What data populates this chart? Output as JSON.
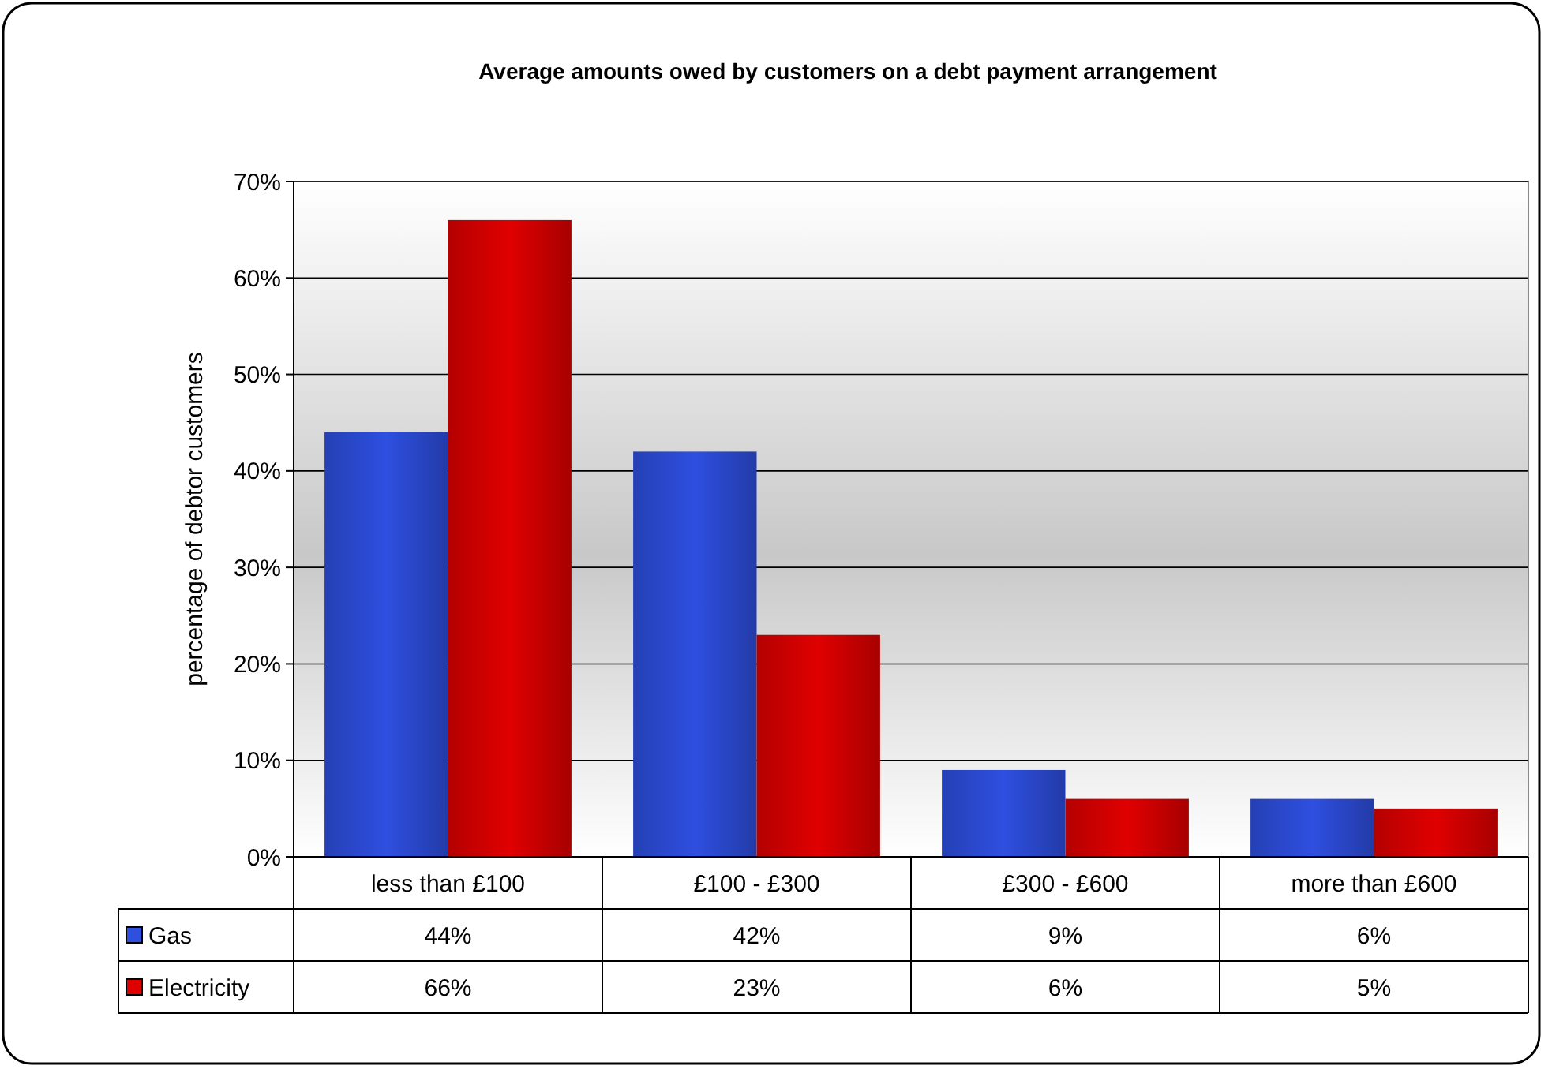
{
  "chart_data": {
    "type": "bar",
    "title": "Average amounts owed by customers on a debt payment arrangement",
    "ylabel": "percentage of debtor customers",
    "categories": [
      "less than £100",
      "£100 - £300",
      "£300 - £600",
      "more than £600"
    ],
    "series": [
      {
        "name": "Gas",
        "color": "#2e4fe0",
        "values": [
          44,
          42,
          9,
          6
        ],
        "value_labels": [
          "44%",
          "42%",
          "9%",
          "6%"
        ]
      },
      {
        "name": "Electricity",
        "color": "#e00000",
        "values": [
          66,
          23,
          6,
          5
        ],
        "value_labels": [
          "66%",
          "23%",
          "6%",
          "5%"
        ]
      }
    ],
    "ylim": [
      0,
      70
    ],
    "yticks": [
      {
        "value": 0,
        "label": "0%"
      },
      {
        "value": 10,
        "label": "10%"
      },
      {
        "value": 20,
        "label": "20%"
      },
      {
        "value": 30,
        "label": "30%"
      },
      {
        "value": 40,
        "label": "40%"
      },
      {
        "value": 50,
        "label": "50%"
      },
      {
        "value": 60,
        "label": "60%"
      },
      {
        "value": 70,
        "label": "70%"
      }
    ],
    "grid": "y",
    "legend": "bottom"
  }
}
